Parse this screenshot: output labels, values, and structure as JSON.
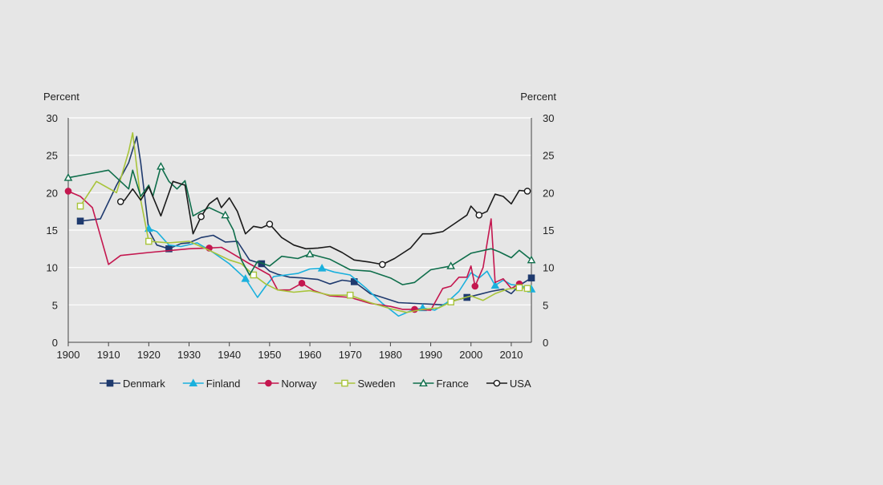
{
  "chart_data": {
    "type": "line",
    "title": "",
    "ylabel_left": "Percent",
    "ylabel_right": "Percent",
    "xlim": [
      1900,
      2015
    ],
    "ylim": [
      0,
      30
    ],
    "x_ticks": [
      1900,
      1910,
      1920,
      1930,
      1940,
      1950,
      1960,
      1970,
      1980,
      1990,
      2000,
      2010
    ],
    "y_ticks": [
      0,
      5,
      10,
      15,
      20,
      25,
      30
    ],
    "grid": "horizontal",
    "legend_position": "bottom",
    "series": [
      {
        "name": "Denmark",
        "color": "#1f3a6e",
        "marker": "square",
        "marker_fill": true,
        "x": [
          1903,
          1908,
          1912,
          1915,
          1917,
          1918,
          1920,
          1922,
          1925,
          1928,
          1930,
          1933,
          1936,
          1939,
          1942,
          1945,
          1948,
          1950,
          1952,
          1955,
          1958,
          1962,
          1965,
          1968,
          1971,
          1975,
          1978,
          1982,
          1986,
          1990,
          1993,
          1996,
          1999,
          2002,
          2005,
          2008,
          2010,
          2012,
          2015
        ],
        "y": [
          16.2,
          16.5,
          21,
          24,
          27.5,
          24,
          15,
          13,
          12.5,
          13.2,
          13.3,
          14,
          14.3,
          13.4,
          13.5,
          11,
          10.5,
          9.5,
          9.1,
          8.7,
          8.6,
          8.4,
          7.8,
          8.3,
          8.1,
          6.5,
          6,
          5.3,
          5.2,
          5.1,
          5,
          5.6,
          6,
          6.4,
          6.8,
          7.1,
          6.5,
          7.6,
          8.6
        ]
      },
      {
        "name": "Finland",
        "color": "#1ab0dd",
        "marker": "triangle",
        "marker_fill": true,
        "x": [
          1920,
          1922,
          1925,
          1928,
          1932,
          1936,
          1940,
          1944,
          1947,
          1949,
          1951,
          1954,
          1957,
          1960,
          1963,
          1966,
          1970,
          1974,
          1978,
          1982,
          1985,
          1988,
          1991,
          1994,
          1997,
          2000,
          2002,
          2004,
          2006,
          2008,
          2010,
          2012,
          2015
        ],
        "y": [
          15.2,
          14.8,
          13,
          12.8,
          13.3,
          12,
          10.5,
          8.5,
          6,
          7.5,
          8.8,
          9,
          9.2,
          9.8,
          9.9,
          9.4,
          9,
          7.2,
          5.2,
          3.5,
          4.2,
          4.6,
          4.3,
          5.3,
          6.8,
          9.3,
          8.6,
          9.5,
          7.6,
          8.3,
          7.7,
          7.6,
          7.1
        ]
      },
      {
        "name": "Norway",
        "color": "#c4174f",
        "marker": "circle",
        "marker_fill": true,
        "x": [
          1900,
          1903,
          1906,
          1910,
          1913,
          1920,
          1930,
          1935,
          1938,
          1940,
          1945,
          1950,
          1952,
          1955,
          1958,
          1961,
          1965,
          1970,
          1975,
          1980,
          1983,
          1986,
          1990,
          1993,
          1995,
          1997,
          1999,
          2000,
          2001,
          2003,
          2005,
          2006,
          2008,
          2010,
          2012
        ],
        "y": [
          20.2,
          19.5,
          18,
          10.4,
          11.6,
          12,
          12.5,
          12.6,
          12.7,
          12.1,
          10.5,
          9,
          7,
          7,
          7.9,
          6.9,
          6.2,
          6,
          5.2,
          4.8,
          4.4,
          4.4,
          4.3,
          7.2,
          7.5,
          8.7,
          8.7,
          10.2,
          7.5,
          10,
          16.5,
          8,
          8.5,
          7.2,
          7.8
        ]
      },
      {
        "name": "Sweden",
        "color": "#a8c43a",
        "marker": "square",
        "marker_fill": false,
        "x": [
          1903,
          1907,
          1912,
          1915,
          1916,
          1918,
          1920,
          1925,
          1930,
          1935,
          1940,
          1943,
          1946,
          1949,
          1952,
          1956,
          1960,
          1965,
          1970,
          1975,
          1980,
          1984,
          1988,
          1992,
          1995,
          1998,
          2000,
          2003,
          2006,
          2009,
          2012,
          2014
        ],
        "y": [
          18.2,
          21.5,
          20,
          25.5,
          28,
          19,
          13.5,
          13.3,
          13.5,
          12.3,
          11,
          10.5,
          9,
          7.8,
          7,
          6.7,
          6.9,
          6.3,
          6.3,
          5.3,
          4.5,
          4,
          4.4,
          4.6,
          5.4,
          5.9,
          6.2,
          5.6,
          6.5,
          7.1,
          7.3,
          7.2
        ]
      },
      {
        "name": "France",
        "color": "#0f6e4b",
        "marker": "triangle",
        "marker_fill": false,
        "x": [
          1900,
          1905,
          1910,
          1915,
          1916,
          1918,
          1920,
          1921,
          1923,
          1925,
          1927,
          1929,
          1931,
          1933,
          1935,
          1937,
          1939,
          1941,
          1943,
          1945,
          1947,
          1950,
          1953,
          1957,
          1960,
          1965,
          1970,
          1975,
          1980,
          1983,
          1986,
          1990,
          1995,
          2000,
          2005,
          2007,
          2010,
          2012,
          2015
        ],
        "y": [
          22,
          22.5,
          23,
          20.5,
          23,
          19.5,
          21,
          19.5,
          23.5,
          21.5,
          20.5,
          21.6,
          16.9,
          17.5,
          18,
          17.5,
          17,
          15,
          11,
          9,
          10.8,
          10.2,
          11.5,
          11.2,
          11.8,
          11.1,
          9.7,
          9.5,
          8.6,
          7.7,
          8,
          9.7,
          10.2,
          11.9,
          12.5,
          12.1,
          11.3,
          12.3,
          11
        ]
      },
      {
        "name": "USA",
        "color": "#1a1a1a",
        "marker": "circle",
        "marker_fill": false,
        "x": [
          1913,
          1914,
          1916,
          1918,
          1920,
          1923,
          1926,
          1929,
          1931,
          1933,
          1935,
          1937,
          1938,
          1940,
          1942,
          1944,
          1946,
          1948,
          1950,
          1953,
          1956,
          1959,
          1962,
          1965,
          1968,
          1971,
          1975,
          1978,
          1981,
          1985,
          1988,
          1990,
          1993,
          1996,
          1999,
          2000,
          2002,
          2004,
          2006,
          2008,
          2010,
          2012,
          2014
        ],
        "y": [
          18.8,
          19,
          20.5,
          19,
          20.8,
          16.9,
          21.5,
          21,
          14.5,
          16.8,
          18.5,
          19.3,
          18,
          19.3,
          17.5,
          14.5,
          15.5,
          15.3,
          15.8,
          14,
          13,
          12.5,
          12.6,
          12.8,
          12,
          11,
          10.7,
          10.4,
          11.2,
          12.6,
          14.5,
          14.5,
          14.8,
          15.9,
          17,
          18.2,
          17,
          17.5,
          19.8,
          19.5,
          18.5,
          20.3,
          20.2
        ]
      }
    ]
  }
}
